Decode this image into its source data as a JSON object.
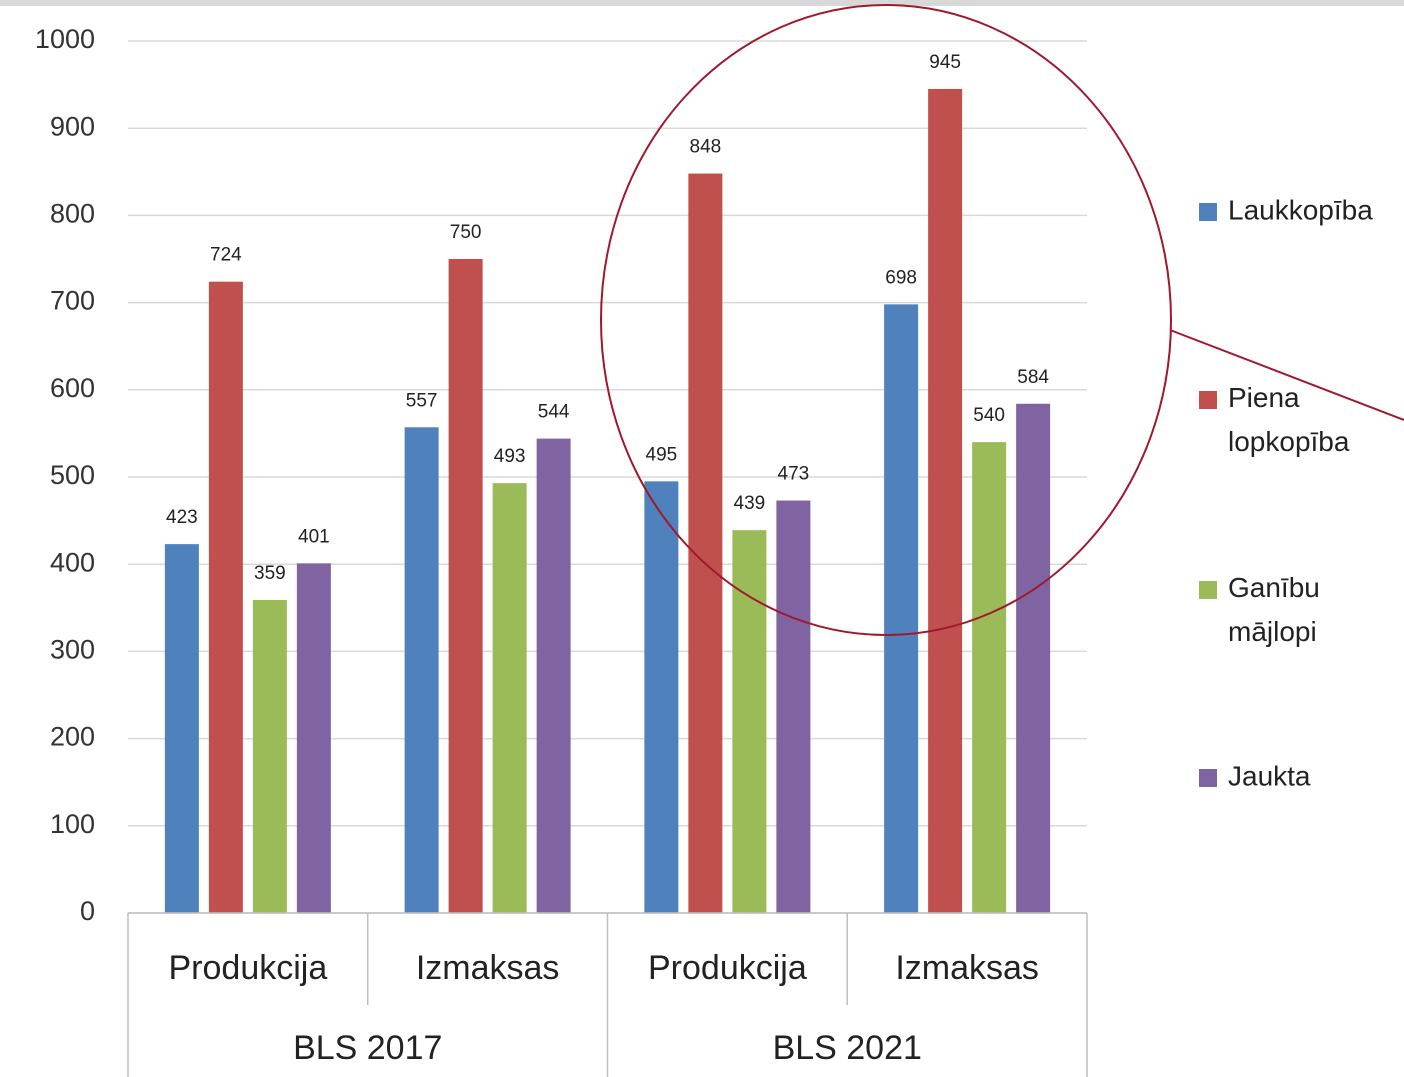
{
  "chart_data": {
    "type": "bar",
    "groups": [
      {
        "name": "BLS 2017",
        "categories": [
          "Produkcija",
          "Izmaksas"
        ]
      },
      {
        "name": "BLS 2021",
        "categories": [
          "Produkcija",
          "Izmaksas"
        ]
      }
    ],
    "series": [
      {
        "name": "Laukkopība",
        "color": "#4f81bd",
        "values": [
          423,
          557,
          495,
          698
        ]
      },
      {
        "name": "Piena lopkopība",
        "color": "#c0504d",
        "values": [
          724,
          750,
          848,
          945
        ]
      },
      {
        "name": "Ganību mājlopi",
        "color": "#9bbb59",
        "values": [
          359,
          493,
          439,
          540
        ]
      },
      {
        "name": "Jaukta",
        "color": "#8064a2",
        "values": [
          401,
          544,
          473,
          584
        ]
      }
    ],
    "ylim": [
      0,
      1000
    ],
    "yticks": [
      0,
      100,
      200,
      300,
      400,
      500,
      600,
      700,
      800,
      900,
      1000
    ],
    "grid": true,
    "legend": "right"
  }
}
